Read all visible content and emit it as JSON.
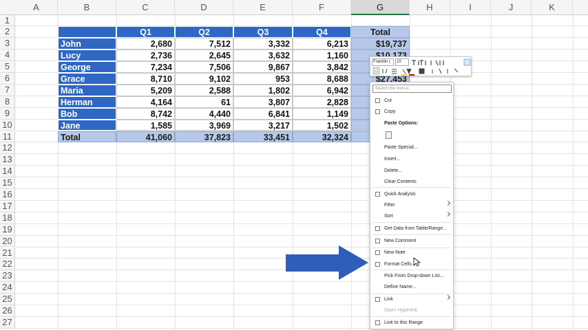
{
  "sheet": {
    "columns": [
      "A",
      "B",
      "C",
      "D",
      "E",
      "F",
      "G",
      "H",
      "I",
      "J",
      "K"
    ],
    "rows": [
      "1",
      "2",
      "3",
      "4",
      "5",
      "6",
      "7",
      "8",
      "9",
      "10",
      "11",
      "12",
      "13",
      "14",
      "15",
      "16",
      "17",
      "18",
      "19",
      "20",
      "21",
      "22",
      "23",
      "24",
      "25",
      "26",
      "27"
    ]
  },
  "table": {
    "header": [
      "Q1",
      "Q2",
      "Q3",
      "Q4",
      "Total"
    ],
    "rows": [
      [
        "John",
        "2,680",
        "7,512",
        "3,332",
        "6,213",
        "$19,737"
      ],
      [
        "Lucy",
        "2,736",
        "2,645",
        "3,632",
        "1,160",
        "$10,173"
      ],
      [
        "George",
        "7,234",
        "7,506",
        "9,867",
        "3,842"
      ],
      [
        "Grace",
        "8,710",
        "9,102",
        "953",
        "8,688",
        "$27,453"
      ],
      [
        "Maria",
        "5,209",
        "2,588",
        "1,802",
        "6,942"
      ],
      [
        "Herman",
        "4,164",
        "61",
        "3,807",
        "2,828"
      ],
      [
        "Bob",
        "8,742",
        "4,440",
        "6,841",
        "1,149"
      ],
      [
        "Jane",
        "1,585",
        "3,969",
        "3,217",
        "1,502"
      ]
    ],
    "total": [
      "Total",
      "41,060",
      "37,823",
      "33,451",
      "32,324"
    ]
  },
  "mini_toolbar": {
    "font": "Franklin (",
    "size": "10"
  },
  "context_menu": {
    "search": "Search the menus",
    "items": [
      "Cut",
      "Copy",
      "Paste Options:",
      "Paste Special...",
      "Insert...",
      "Delete...",
      "Clear Contents",
      "Quick Analysis",
      "Filter",
      "Sort",
      "Get Data from Table/Range...",
      "New Comment",
      "New Note",
      "Format Cells...",
      "Pick From Drop-down List...",
      "Define Name...",
      "Link",
      "Open Hyperlink",
      "Link to this Range"
    ]
  }
}
